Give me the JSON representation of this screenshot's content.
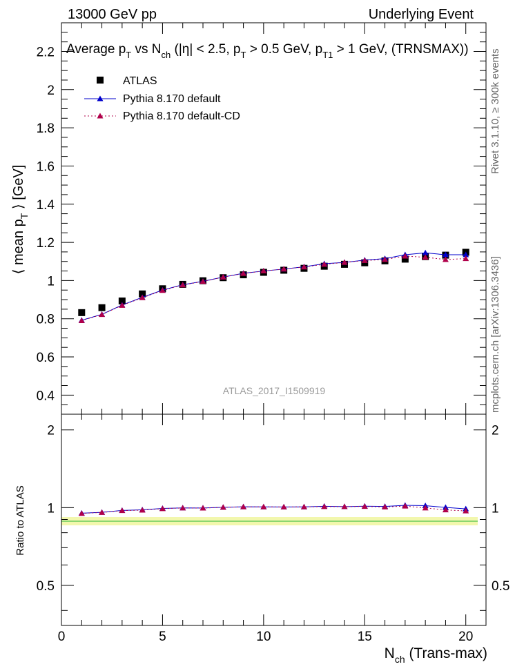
{
  "header": {
    "left": "13000 GeV pp",
    "right": "Underlying Event"
  },
  "side_labels": {
    "rivet": "Rivet 3.1.10, ≥ 300k events",
    "mcplots": "mcplots.cern.ch [arXiv:1306.3436]"
  },
  "watermark": "ATLAS_2017_I1509919",
  "colors": {
    "atlas": "#000000",
    "pythia_default": "#0000cc",
    "pythia_cd": "#b0004a",
    "band_yellow": "#e8f06a",
    "band_green": "#4ec24e"
  },
  "chart_data": [
    {
      "type": "scatter",
      "title": "Average p_T vs N_ch (|η| < 2.5, p_T > 0.5 GeV, p_T1 > 1 GeV, (TRNSMAX))",
      "title_parts": {
        "t1": "Average p",
        "t2": "T",
        "t3": " vs N",
        "t4": "ch",
        "t5": " (|η| < 2.5, p",
        "t6": "T",
        "t7": " > 0.5 GeV, p",
        "t8": "T1",
        "t9": " > 1 GeV, (TRNSMAX))"
      },
      "ylabel": "⟨ mean p_T ⟩ [GeV]",
      "ylabel_parts": {
        "a": "⟨ mean p",
        "b": "T",
        "c": " ⟩ [GeV]"
      },
      "xlim": [
        0,
        21
      ],
      "ylim": [
        0.3,
        2.35
      ],
      "yticks": [
        0.4,
        0.6,
        0.8,
        1.0,
        1.2,
        1.4,
        1.6,
        1.8,
        2.0,
        2.2
      ],
      "ytick_labels": [
        "0.4",
        "0.6",
        "0.8",
        "1",
        "1.2",
        "1.4",
        "1.6",
        "1.8",
        "2",
        "2.2"
      ],
      "legend": {
        "placement": "top-left",
        "entries": [
          "ATLAS",
          "Pythia 8.170 default",
          "Pythia 8.170 default-CD"
        ]
      },
      "x": [
        1,
        2,
        3,
        4,
        5,
        6,
        7,
        8,
        9,
        10,
        11,
        12,
        13,
        14,
        15,
        16,
        17,
        18,
        19,
        20
      ],
      "series": [
        {
          "name": "ATLAS",
          "style": "square",
          "values": [
            0.832,
            0.858,
            0.893,
            0.93,
            0.957,
            0.98,
            0.999,
            1.015,
            1.03,
            1.043,
            1.054,
            1.064,
            1.075,
            1.085,
            1.093,
            1.103,
            1.112,
            1.125,
            1.133,
            1.148
          ]
        },
        {
          "name": "Pythia 8.170 default",
          "style": "triangle-solid",
          "values": [
            0.792,
            0.823,
            0.872,
            0.912,
            0.95,
            0.978,
            0.996,
            1.018,
            1.038,
            1.05,
            1.06,
            1.072,
            1.088,
            1.095,
            1.107,
            1.115,
            1.135,
            1.145,
            1.135,
            1.135
          ]
        },
        {
          "name": "Pythia 8.170 default-CD",
          "style": "triangle-dotted",
          "values": [
            0.79,
            0.822,
            0.87,
            0.91,
            0.948,
            0.977,
            0.995,
            1.018,
            1.037,
            1.05,
            1.06,
            1.071,
            1.085,
            1.095,
            1.105,
            1.11,
            1.128,
            1.122,
            1.11,
            1.115
          ]
        }
      ]
    },
    {
      "type": "scatter",
      "xlabel": "N_ch (Trans-max)",
      "xlabel_parts": {
        "a": "N",
        "b": "ch",
        "c": " (Trans-max)"
      },
      "ylabel": "Ratio to ATLAS",
      "xlim": [
        0,
        21
      ],
      "ylim": [
        0.35,
        2.3
      ],
      "xticks": [
        0,
        5,
        10,
        15,
        20
      ],
      "xtick_labels": [
        "0",
        "5",
        "10",
        "15",
        "20"
      ],
      "yticks": [
        0.5,
        1,
        2
      ],
      "ytick_labels": [
        "0.5",
        "1",
        "2"
      ],
      "x": [
        1,
        2,
        3,
        4,
        5,
        6,
        7,
        8,
        9,
        10,
        11,
        12,
        13,
        14,
        15,
        16,
        17,
        18,
        19,
        20
      ],
      "series": [
        {
          "name": "Pythia 8.170 default",
          "style": "triangle-solid",
          "values": [
            0.952,
            0.959,
            0.976,
            0.981,
            0.993,
            0.998,
            0.997,
            1.003,
            1.008,
            1.007,
            1.006,
            1.007,
            1.012,
            1.009,
            1.013,
            1.011,
            1.021,
            1.018,
            1.002,
            0.989
          ]
        },
        {
          "name": "Pythia 8.170 default-CD",
          "style": "triangle-dotted",
          "values": [
            0.95,
            0.958,
            0.974,
            0.978,
            0.991,
            0.997,
            0.996,
            1.003,
            1.007,
            1.007,
            1.006,
            1.007,
            1.009,
            1.009,
            1.011,
            1.006,
            1.014,
            0.997,
            0.98,
            0.971
          ]
        }
      ]
    }
  ]
}
